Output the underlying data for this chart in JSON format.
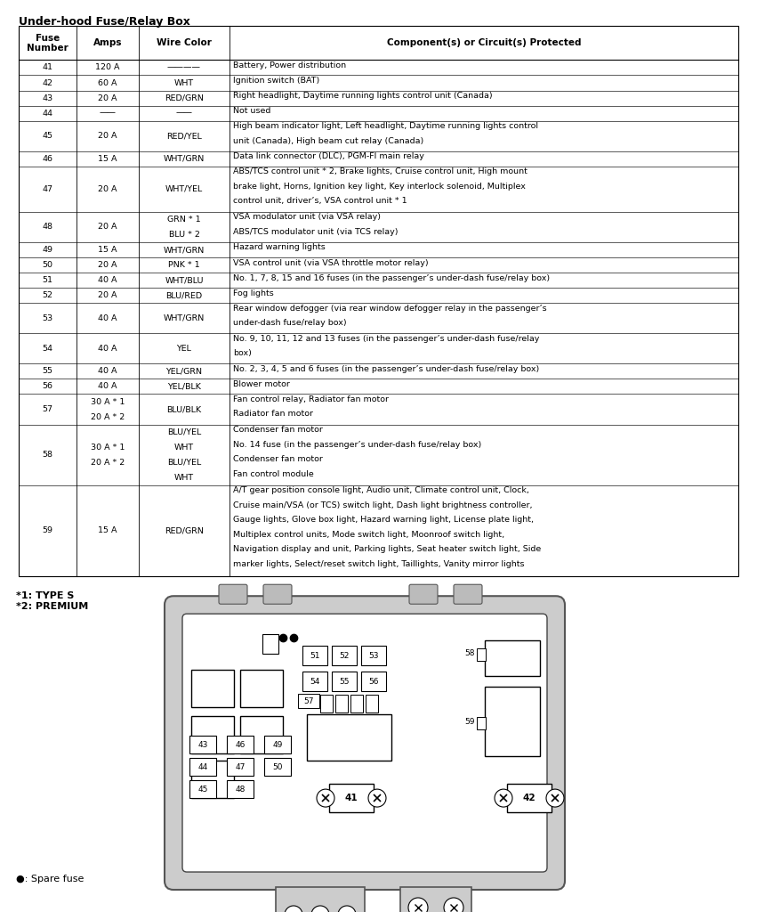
{
  "title": "Under-hood Fuse/Relay Box",
  "headers": [
    "Fuse\nNumber",
    "Amps",
    "Wire Color",
    "Component(s) or Circuit(s) Protected"
  ],
  "rows": [
    [
      "41",
      "120 A",
      "————",
      "Battery, Power distribution"
    ],
    [
      "42",
      "60 A",
      "WHT",
      "Ignition switch (BAT)"
    ],
    [
      "43",
      "20 A",
      "RED/GRN",
      "Right headlight, Daytime running lights control unit (Canada)"
    ],
    [
      "44",
      "——",
      "——",
      "Not used"
    ],
    [
      "45",
      "20 A",
      "RED/YEL",
      "High beam indicator light, Left headlight, Daytime running lights control\nunit (Canada), High beam cut relay (Canada)"
    ],
    [
      "46",
      "15 A",
      "WHT/GRN",
      "Data link connector (DLC), PGM-FI main relay"
    ],
    [
      "47",
      "20 A",
      "WHT/YEL",
      "ABS/TCS control unit * 2, Brake lights, Cruise control unit, High mount\nbrake light, Horns, Ignition key light, Key interlock solenoid, Multiplex\ncontrol unit, driver’s, VSA control unit * 1"
    ],
    [
      "48",
      "20 A",
      "GRN * 1\nBLU * 2",
      "VSA modulator unit (via VSA relay)\nABS/TCS modulator unit (via TCS relay)"
    ],
    [
      "49",
      "15 A",
      "WHT/GRN",
      "Hazard warning lights"
    ],
    [
      "50",
      "20 A",
      "PNK * 1",
      "VSA control unit (via VSA throttle motor relay)"
    ],
    [
      "51",
      "40 A",
      "WHT/BLU",
      "No. 1, 7, 8, 15 and 16 fuses (in the passenger’s under-dash fuse/relay box)"
    ],
    [
      "52",
      "20 A",
      "BLU/RED",
      "Fog lights"
    ],
    [
      "53",
      "40 A",
      "WHT/GRN",
      "Rear window defogger (via rear window defogger relay in the passenger’s\nunder-dash fuse/relay box)"
    ],
    [
      "54",
      "40 A",
      "YEL",
      "No. 9, 10, 11, 12 and 13 fuses (in the passenger’s under-dash fuse/relay\nbox)"
    ],
    [
      "55",
      "40 A",
      "YEL/GRN",
      "No. 2, 3, 4, 5 and 6 fuses (in the passenger’s under-dash fuse/relay box)"
    ],
    [
      "56",
      "40 A",
      "YEL/BLK",
      "Blower motor"
    ],
    [
      "57",
      "30 A * 1\n20 A * 2",
      "BLU/BLK\n",
      "Fan control relay, Radiator fan motor\nRadiator fan motor"
    ],
    [
      "58",
      "30 A * 1\n\n20 A * 2\n",
      "BLU/YEL\nWHT\nBLU/YEL\nWHT",
      "Condenser fan motor\nNo. 14 fuse (in the passenger’s under-dash fuse/relay box)\nCondenser fan motor\nFan control module"
    ],
    [
      "59",
      "15 A",
      "RED/GRN",
      "A/T gear position console light, Audio unit, Climate control unit, Clock,\nCruise main/VSA (or TCS) switch light, Dash light brightness controller,\nGauge lights, Glove box light, Hazard warning light, License plate light,\nMultiplex control units, Mode switch light, Moonroof switch light,\nNavigation display and unit, Parking lights, Seat heater switch light, Side\nmarker lights, Select/reset switch light, Taillights, Vanity mirror lights"
    ]
  ],
  "footnote1": "*1: TYPE S",
  "footnote2": "*2: PREMIUM",
  "spare_fuse_label": "●: Spare fuse",
  "bg_color": "#ffffff"
}
